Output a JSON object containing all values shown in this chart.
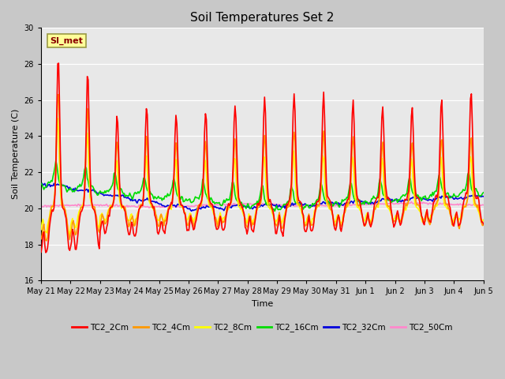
{
  "title": "Soil Temperatures Set 2",
  "xlabel": "Time",
  "ylabel": "Soil Temperature (C)",
  "ylim": [
    16,
    30
  ],
  "yticks": [
    16,
    18,
    20,
    22,
    24,
    26,
    28,
    30
  ],
  "annotation_text": "SI_met",
  "series_colors": {
    "TC2_2Cm": "#ff0000",
    "TC2_4Cm": "#ff9900",
    "TC2_8Cm": "#ffff00",
    "TC2_16Cm": "#00dd00",
    "TC2_32Cm": "#0000dd",
    "TC2_50Cm": "#ff88cc"
  },
  "x_tick_labels": [
    "May 21",
    "May 22",
    "May 23",
    "May 24",
    "May 25",
    "May 26",
    "May 27",
    "May 28",
    "May 29",
    "May 30",
    "May 31",
    "Jun 1",
    "Jun 2",
    "Jun 3",
    "Jun 4",
    "Jun 5"
  ],
  "n_points": 480,
  "line_width": 1.2
}
